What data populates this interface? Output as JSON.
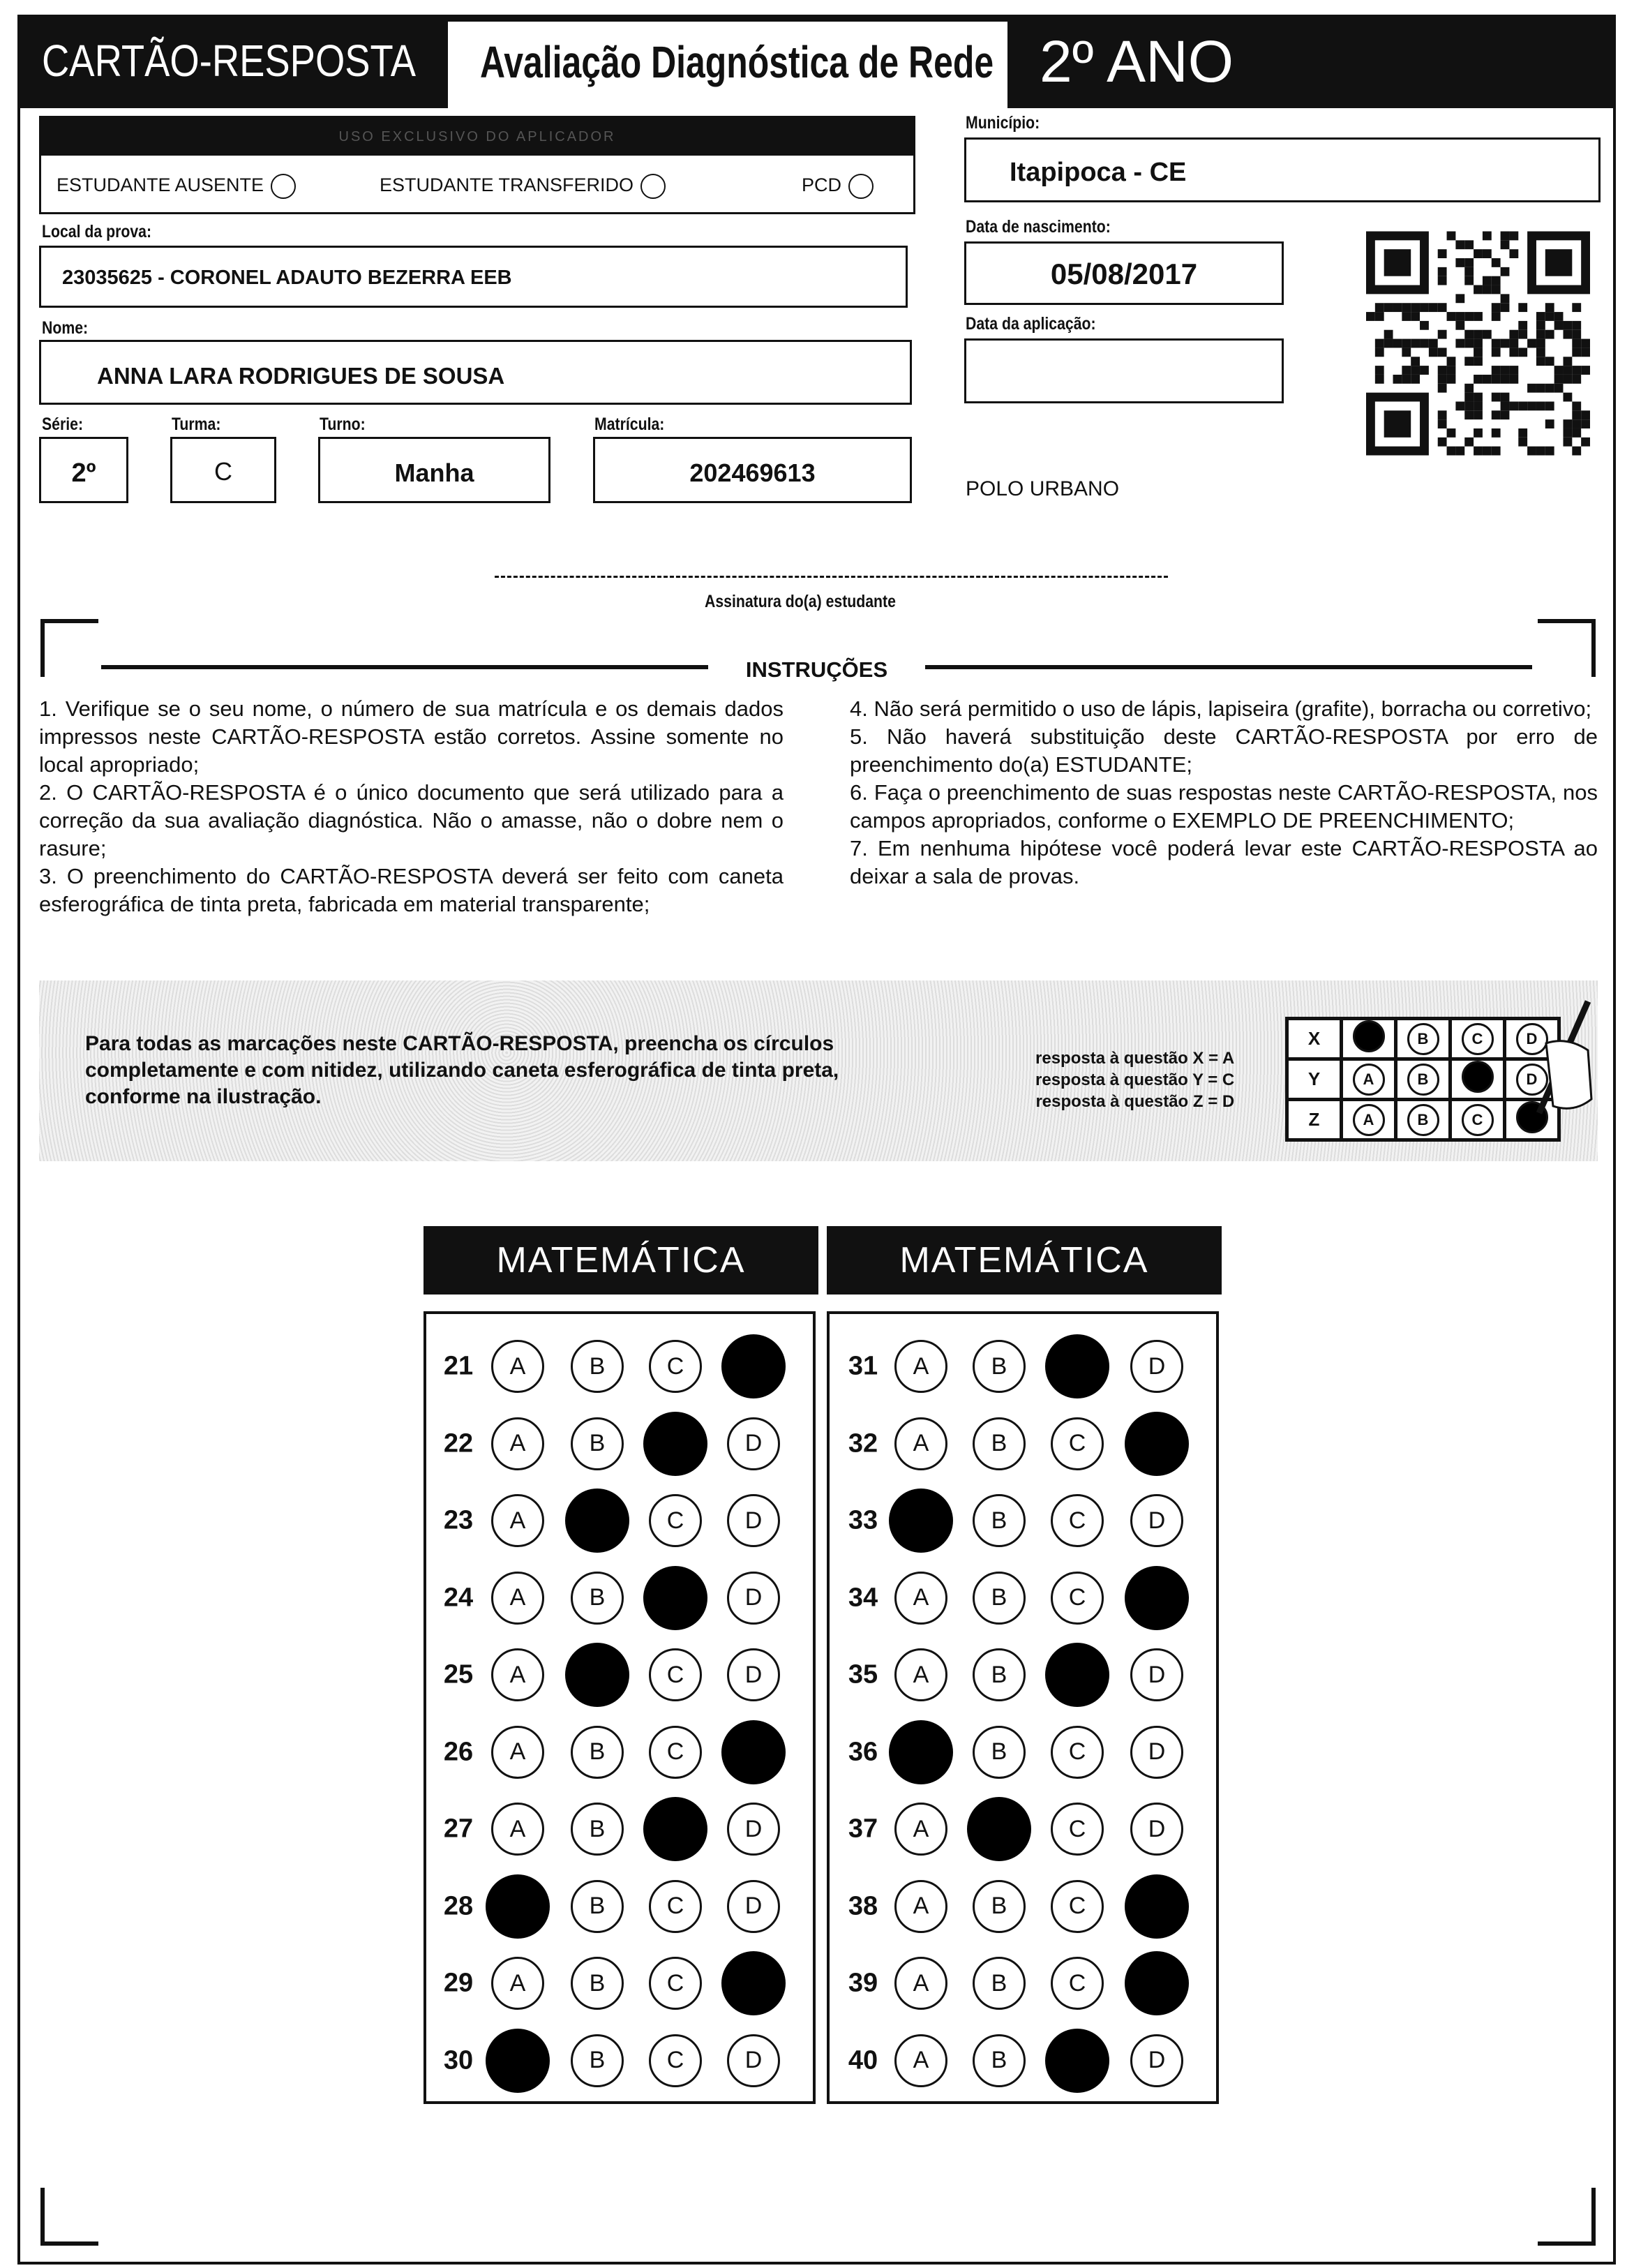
{
  "header": {
    "title": "CARTÃO-RESPOSTA",
    "exam": "Avaliação Diagnóstica de Rede",
    "grade": "2º ANO"
  },
  "aplicador": {
    "title": "USO EXCLUSIVO DO APLICADOR",
    "options": [
      "ESTUDANTE AUSENTE",
      "ESTUDANTE TRANSFERIDO",
      "PCD"
    ]
  },
  "fields": {
    "municipio_label": "Município:",
    "municipio": "Itapipoca - CE",
    "local_label": "Local da prova:",
    "local": "23035625 - CORONEL ADAUTO BEZERRA EEB",
    "nascimento_label": "Data de nascimento:",
    "nascimento": "05/08/2017",
    "nome_label": "Nome:",
    "nome": "ANNA LARA RODRIGUES DE SOUSA",
    "aplicacao_label": "Data da aplicação:",
    "aplicacao": "",
    "serie_label": "Série:",
    "serie": "2º",
    "turma_label": "Turma:",
    "turma": "C",
    "turno_label": "Turno:",
    "turno": "Manha",
    "matricula_label": "Matrícula:",
    "matricula": "202469613",
    "polo": "POLO URBANO"
  },
  "signature_label": "Assinatura do(a) estudante",
  "instructions": {
    "title": "INSTRUÇÕES",
    "left": "1. Verifique se o seu nome, o número de sua matrícula e os demais dados impressos neste CARTÃO-RESPOSTA estão corretos. Assine somente no local apropriado;\n2. O CARTÃO-RESPOSTA é o único documento que será utilizado para a correção da sua avaliação diagnóstica. Não o amasse, não o dobre nem o rasure;\n3. O preenchimento do CARTÃO-RESPOSTA deverá ser feito com caneta esferográfica de tinta preta, fabricada em material transparente;",
    "right": "4. Não será permitido o uso de lápis, lapiseira (grafite), borracha ou corretivo;\n5. Não haverá substituição deste CARTÃO-RESPOSTA por erro de preenchimento do(a) ESTUDANTE;\n6. Faça o preenchimento de suas respostas neste CARTÃO-RESPOSTA, nos campos apropriados, conforme o EXEMPLO DE PREENCHIMENTO;\n7. Em nenhuma hipótese você poderá levar este CARTÃO-RESPOSTA ao deixar a sala de provas."
  },
  "example": {
    "text": "Para todas as marcações neste CARTÃO-RESPOSTA, preencha os círculos completamente e com nitidez, utilizando caneta esferográfica de tinta preta, conforme na ilustração.",
    "legend": [
      "resposta à questão X = A",
      "resposta à questão Y = C",
      "resposta à questão Z = D"
    ],
    "rows": [
      {
        "q": "X",
        "filled": "A"
      },
      {
        "q": "Y",
        "filled": "C"
      },
      {
        "q": "Z",
        "filled": "D"
      }
    ]
  },
  "options": [
    "A",
    "B",
    "C",
    "D"
  ],
  "sections": [
    {
      "title": "MATEMÁTICA",
      "questions": [
        {
          "n": 21,
          "marked": "D"
        },
        {
          "n": 22,
          "marked": "C"
        },
        {
          "n": 23,
          "marked": "B"
        },
        {
          "n": 24,
          "marked": "C"
        },
        {
          "n": 25,
          "marked": "B"
        },
        {
          "n": 26,
          "marked": "D"
        },
        {
          "n": 27,
          "marked": "C"
        },
        {
          "n": 28,
          "marked": "A"
        },
        {
          "n": 29,
          "marked": "D"
        },
        {
          "n": 30,
          "marked": "A"
        }
      ]
    },
    {
      "title": "MATEMÁTICA",
      "questions": [
        {
          "n": 31,
          "marked": "C"
        },
        {
          "n": 32,
          "marked": "D"
        },
        {
          "n": 33,
          "marked": "A"
        },
        {
          "n": 34,
          "marked": "D"
        },
        {
          "n": 35,
          "marked": "C"
        },
        {
          "n": 36,
          "marked": "A"
        },
        {
          "n": 37,
          "marked": "B"
        },
        {
          "n": 38,
          "marked": "D"
        },
        {
          "n": 39,
          "marked": "D"
        },
        {
          "n": 40,
          "marked": "C"
        }
      ]
    }
  ]
}
